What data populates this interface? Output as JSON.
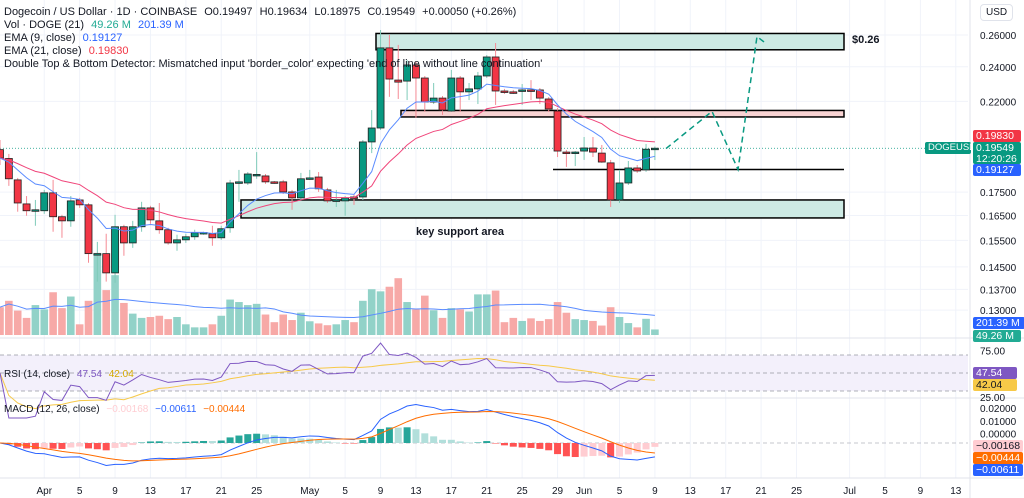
{
  "header": {
    "symbol": "Dogecoin / US Dollar · 1D · COINBASE",
    "open": "O0.19497",
    "high": "H0.19634",
    "low": "L0.18975",
    "close": "C0.19549",
    "change": "+0.00050 (+0.26%)",
    "vol_label": "Vol · DOGE (21)",
    "vol_value": "49.26 M",
    "vol_ma_value": "201.39 M",
    "ema9_label": "EMA (9, close)",
    "ema9_value": "0.19127",
    "ema21_label": "EMA (21, close)",
    "ema21_value": "0.19830",
    "error_text": "Double Top & Bottom Detector: Mismatched input 'border_color' expecting 'end of line without line continuation'"
  },
  "rsi": {
    "label": "RSI (14, close)",
    "value": "47.54",
    "ma_value": "42.04",
    "ticks": [
      "75.00",
      "25.00"
    ]
  },
  "macd": {
    "label": "MACD (12, 26, close)",
    "hist": "−0.00168",
    "macd": "−0.00611",
    "signal": "−0.00444",
    "ticks": [
      "0.02000",
      "0.01000",
      "0.00000"
    ]
  },
  "axis": {
    "currency": "USD",
    "price_ticks": [
      "0.26000",
      "0.24000",
      "0.22000",
      "0.17500",
      "0.16500",
      "0.15500",
      "0.14500",
      "0.13700",
      "0.13000"
    ],
    "x_ticks": [
      "Apr",
      "5",
      "9",
      "13",
      "17",
      "21",
      "25",
      "May",
      "5",
      "9",
      "13",
      "17",
      "21",
      "25",
      "29",
      "Jun",
      "5",
      "9",
      "13",
      "17",
      "21",
      "25",
      "Jul",
      "5",
      "9",
      "13"
    ]
  },
  "price_tags": {
    "ema21": "0.19830",
    "last": "0.19549",
    "countdown": "12:20:26",
    "ema9": "0.19127",
    "symbol_tag": "DOGEUSD",
    "vol_ma": "201.39 M",
    "vol": "49.26 M"
  },
  "annotations": {
    "target_label": "$0.26",
    "support_label": "key support area"
  },
  "colors": {
    "up": "#089981",
    "down": "#f23645",
    "ema9": "#5b8cff",
    "ema21": "#f0457a",
    "rsi": "#7e57c2",
    "rsi_ma": "#f7c948",
    "macd": "#2962ff",
    "signal": "#ff6d00",
    "zone_green": "#cdeae4",
    "zone_red": "#f8d3d3"
  },
  "chart_data": {
    "type": "candlestick",
    "interval": "1D",
    "price_scale": "log",
    "ohlc": [
      [
        0.1948,
        0.1996,
        0.1874,
        0.1907
      ],
      [
        0.1905,
        0.1927,
        0.1778,
        0.181
      ],
      [
        0.1805,
        0.1814,
        0.1666,
        0.1703
      ],
      [
        0.1699,
        0.1733,
        0.1649,
        0.167
      ],
      [
        0.1672,
        0.1716,
        0.1608,
        0.1674
      ],
      [
        0.167,
        0.176,
        0.1657,
        0.1747
      ],
      [
        0.1747,
        0.1805,
        0.1584,
        0.1645
      ],
      [
        0.1645,
        0.1653,
        0.156,
        0.1628
      ],
      [
        0.1628,
        0.1733,
        0.1604,
        0.1712
      ],
      [
        0.1716,
        0.1725,
        0.1682,
        0.1695
      ],
      [
        0.1695,
        0.1703,
        0.1465,
        0.1499
      ],
      [
        0.1495,
        0.1544,
        0.1397,
        0.1499
      ],
      [
        0.1499,
        0.1576,
        0.1397,
        0.1428
      ],
      [
        0.1428,
        0.1653,
        0.1393,
        0.1604
      ],
      [
        0.1604,
        0.1612,
        0.1491,
        0.154
      ],
      [
        0.154,
        0.1628,
        0.1521,
        0.1604
      ],
      [
        0.1604,
        0.1708,
        0.1584,
        0.1682
      ],
      [
        0.1682,
        0.1691,
        0.1616,
        0.1632
      ],
      [
        0.1628,
        0.1703,
        0.1576,
        0.1592
      ],
      [
        0.1592,
        0.16,
        0.1533,
        0.154
      ],
      [
        0.154,
        0.1572,
        0.151,
        0.1552
      ],
      [
        0.1552,
        0.1576,
        0.154,
        0.1564
      ],
      [
        0.1564,
        0.1592,
        0.1552,
        0.158
      ],
      [
        0.158,
        0.1584,
        0.1572,
        0.1581
      ],
      [
        0.1576,
        0.1608,
        0.1529,
        0.156
      ],
      [
        0.156,
        0.1608,
        0.1552,
        0.1596
      ],
      [
        0.16,
        0.1805,
        0.158,
        0.1791
      ],
      [
        0.1791,
        0.1851,
        0.1708,
        0.1796
      ],
      [
        0.1791,
        0.1841,
        0.1782,
        0.1832
      ],
      [
        0.1828,
        0.1936,
        0.181,
        0.183
      ],
      [
        0.1823,
        0.1832,
        0.1787,
        0.1796
      ],
      [
        0.1796,
        0.18,
        0.1787,
        0.1791
      ],
      [
        0.1796,
        0.1805,
        0.1742,
        0.1751
      ],
      [
        0.1751,
        0.176,
        0.1674,
        0.1725
      ],
      [
        0.1725,
        0.1837,
        0.1716,
        0.181
      ],
      [
        0.1812,
        0.1851,
        0.1805,
        0.1814
      ],
      [
        0.1818,
        0.1841,
        0.1751,
        0.1765
      ],
      [
        0.176,
        0.1769,
        0.1703,
        0.1712
      ],
      [
        0.1712,
        0.176,
        0.1686,
        0.1716
      ],
      [
        0.1712,
        0.1733,
        0.1649,
        0.1725
      ],
      [
        0.1729,
        0.1738,
        0.1695,
        0.1728
      ],
      [
        0.1729,
        0.1996,
        0.1716,
        0.1986
      ],
      [
        0.1986,
        0.2152,
        0.1931,
        0.2057
      ],
      [
        0.2057,
        0.2633,
        0.2047,
        0.2517
      ],
      [
        0.2517,
        0.26,
        0.2225,
        0.2327
      ],
      [
        0.2321,
        0.2536,
        0.2213,
        0.2309
      ],
      [
        0.2315,
        0.2441,
        0.2207,
        0.2411
      ],
      [
        0.2411,
        0.2429,
        0.211,
        0.2333
      ],
      [
        0.2333,
        0.2345,
        0.2142,
        0.2196
      ],
      [
        0.2196,
        0.2304,
        0.2185,
        0.2218
      ],
      [
        0.2218,
        0.223,
        0.2126,
        0.2152
      ],
      [
        0.2147,
        0.2381,
        0.2142,
        0.2333
      ],
      [
        0.2333,
        0.2345,
        0.2142,
        0.2253
      ],
      [
        0.2253,
        0.2304,
        0.2207,
        0.227
      ],
      [
        0.227,
        0.2369,
        0.2185,
        0.2345
      ],
      [
        0.2345,
        0.2472,
        0.2333,
        0.246
      ],
      [
        0.246,
        0.2548,
        0.218,
        0.2258
      ],
      [
        0.2258,
        0.227,
        0.2241,
        0.2253
      ],
      [
        0.2253,
        0.2264,
        0.2241,
        0.2252
      ],
      [
        0.2258,
        0.2298,
        0.218,
        0.2264
      ],
      [
        0.2264,
        0.2321,
        0.2207,
        0.2263
      ],
      [
        0.2264,
        0.2275,
        0.2185,
        0.2218
      ],
      [
        0.2213,
        0.2224,
        0.2142,
        0.2158
      ],
      [
        0.2147,
        0.2163,
        0.1912,
        0.1941
      ],
      [
        0.1936,
        0.1946,
        0.1865,
        0.1931
      ],
      [
        0.1931,
        0.1941,
        0.1869,
        0.1936
      ],
      [
        0.1941,
        0.2011,
        0.1898,
        0.1956
      ],
      [
        0.1956,
        0.2011,
        0.1912,
        0.1936
      ],
      [
        0.1931,
        0.1971,
        0.1884,
        0.1888
      ],
      [
        0.1884,
        0.1898,
        0.1686,
        0.1716
      ],
      [
        0.1716,
        0.1851,
        0.1703,
        0.1791
      ],
      [
        0.1791,
        0.1893,
        0.1782,
        0.186
      ],
      [
        0.186,
        0.1874,
        0.1837,
        0.1846
      ],
      [
        0.1851,
        0.1976,
        0.1842,
        0.195
      ],
      [
        0.19497,
        0.19634,
        0.18975,
        0.19549
      ]
    ],
    "volume_millions": [
      247,
      304,
      217,
      152,
      266,
      228,
      380,
      239,
      342,
      95,
      304,
      730,
      399,
      532,
      285,
      190,
      152,
      160,
      171,
      141,
      160,
      95,
      68,
      68,
      95,
      171,
      315,
      293,
      266,
      277,
      182,
      114,
      182,
      133,
      198,
      122,
      103,
      87,
      95,
      133,
      114,
      304,
      407,
      388,
      429,
      505,
      293,
      228,
      350,
      220,
      152,
      239,
      228,
      209,
      361,
      361,
      395,
      114,
      152,
      125,
      148,
      125,
      141,
      293,
      198,
      141,
      133,
      125,
      84,
      247,
      160,
      106,
      68,
      144,
      49.26
    ],
    "zones": [
      {
        "kind": "resistance",
        "low": 0.2505,
        "high": 0.261,
        "color": "#cdeae4"
      },
      {
        "kind": "resistance",
        "low": 0.2115,
        "high": 0.215,
        "color": "#f8d3d3"
      },
      {
        "kind": "support_line",
        "price": 0.1853
      },
      {
        "kind": "support",
        "low": 0.164,
        "high": 0.1716,
        "color": "#cdeae4"
      }
    ],
    "projection_prices": [
      0.1953,
      0.2145,
      0.1853,
      0.259,
      0.2545
    ]
  }
}
